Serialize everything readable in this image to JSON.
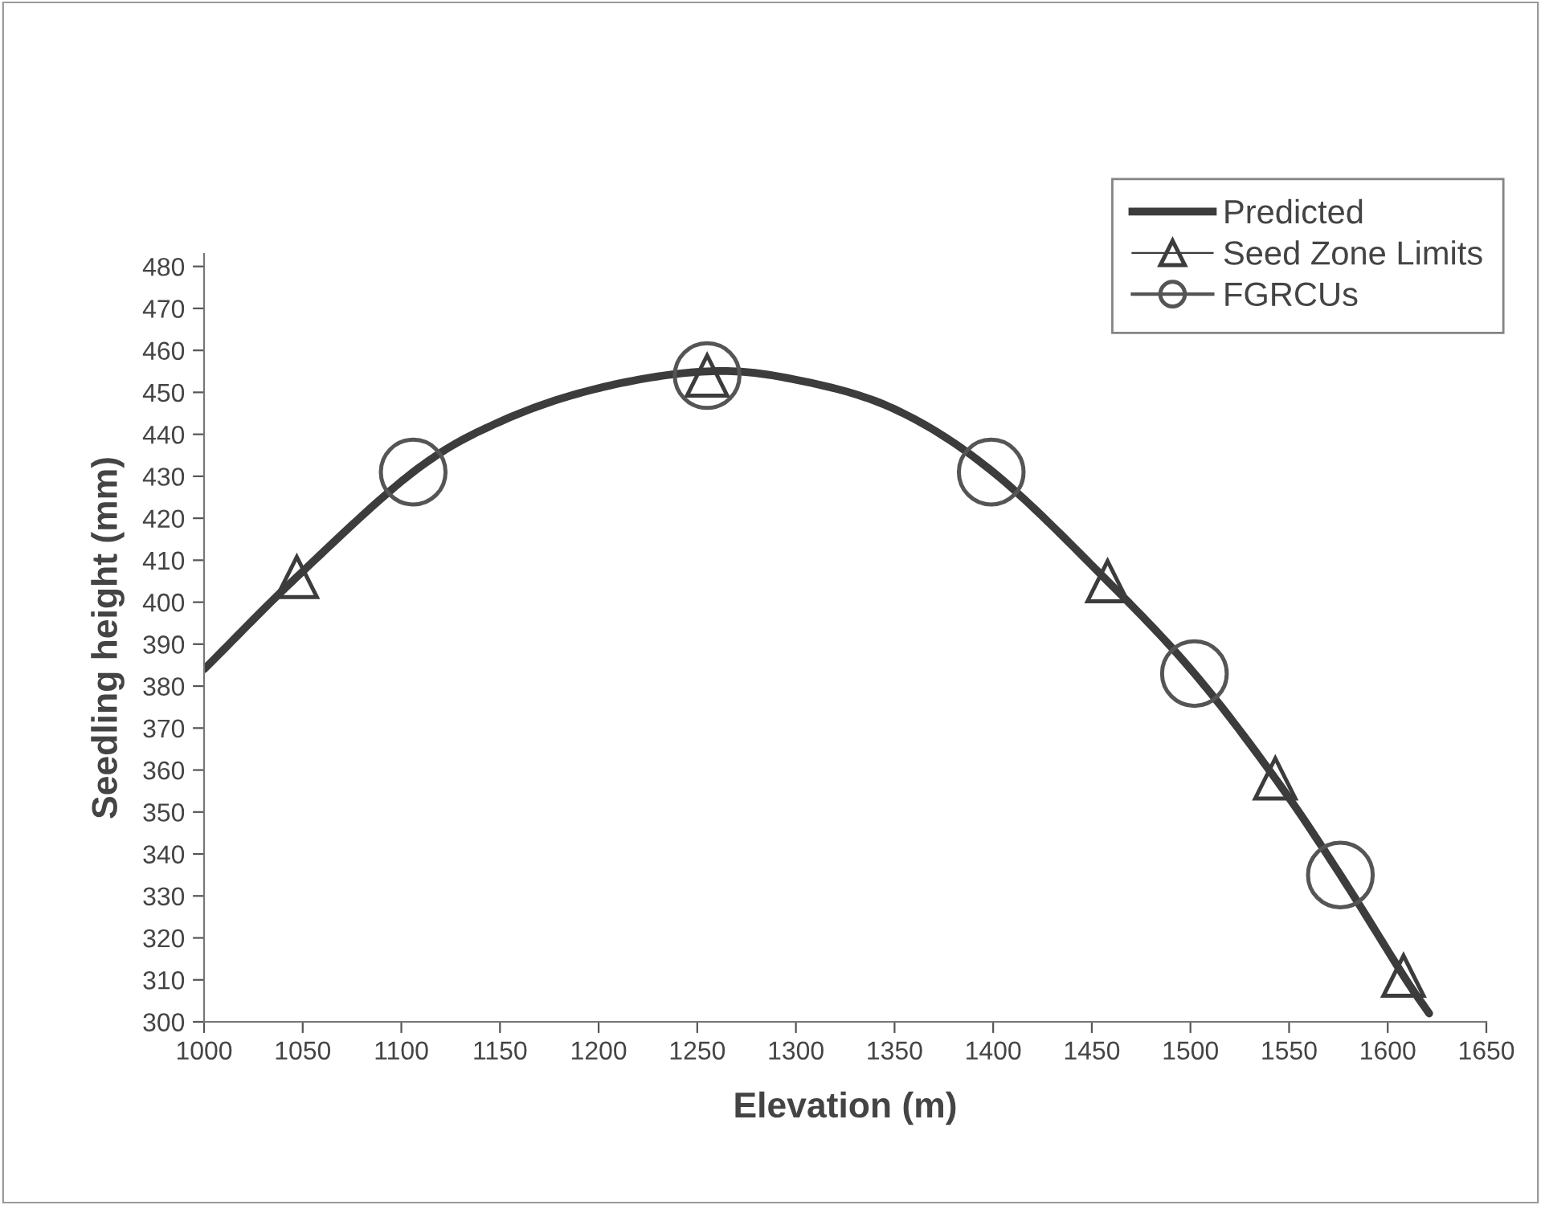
{
  "chart_data": {
    "type": "line",
    "xlabel": "Elevation (m)",
    "ylabel": "Seedling height (mm)",
    "xlim": [
      1000,
      1650
    ],
    "xticks": [
      1000,
      1050,
      1100,
      1150,
      1200,
      1250,
      1300,
      1350,
      1400,
      1450,
      1500,
      1550,
      1600,
      1650
    ],
    "ylim": [
      300,
      483
    ],
    "yticks": [
      300,
      310,
      320,
      330,
      340,
      350,
      360,
      370,
      380,
      390,
      400,
      410,
      420,
      430,
      440,
      450,
      460,
      470,
      480
    ],
    "grid": false,
    "legend": "top right",
    "series": [
      {
        "name": "Predicted",
        "color": "#3c3c3c",
        "line_style": "solid",
        "marker": "none",
        "x": [
          1000,
          1047,
          1106,
          1150,
          1200,
          1255,
          1300,
          1350,
          1400,
          1458,
          1502,
          1543,
          1576,
          1608,
          1621
        ],
        "values": [
          384,
          406,
          431,
          443,
          451,
          455,
          453,
          446,
          431,
          405,
          383,
          358,
          335,
          311,
          302
        ]
      },
      {
        "name": "Seed Zone Limits",
        "type": "scatter",
        "color": "#3c3c3c",
        "marker": "triangle",
        "x": [
          1047,
          1255,
          1458,
          1543,
          1608
        ],
        "values": [
          406,
          454,
          405,
          358,
          311
        ]
      },
      {
        "name": "FGRCUs",
        "type": "scatter",
        "color": "#555555",
        "marker": "circle",
        "x": [
          1106,
          1255,
          1399,
          1502,
          1576
        ],
        "values": [
          431,
          454,
          431,
          383,
          335
        ]
      }
    ]
  }
}
